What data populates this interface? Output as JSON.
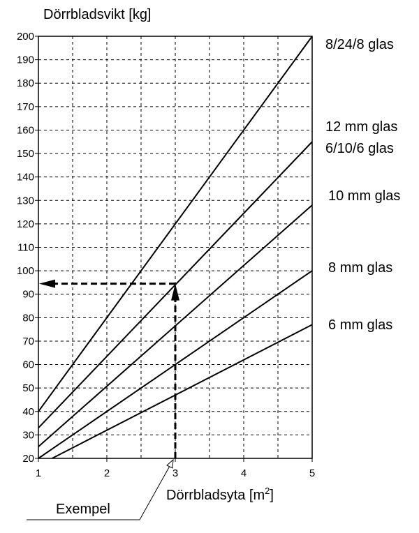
{
  "chart_data": {
    "type": "line",
    "ylabel": "Dörrbladsvikt [kg]",
    "xlabel_base": "Dörrbladsyta [m",
    "xlabel_sup": "2",
    "xlabel_close": "]",
    "xlim": [
      1,
      5
    ],
    "ylim": [
      20,
      200
    ],
    "x_ticks": [
      1,
      2,
      3,
      4,
      5
    ],
    "y_ticks": [
      20,
      30,
      40,
      50,
      60,
      70,
      80,
      90,
      100,
      110,
      120,
      130,
      140,
      150,
      160,
      170,
      180,
      190,
      200
    ],
    "grid": true,
    "series": [
      {
        "name": "8/24/8 glas",
        "x": [
          1,
          5
        ],
        "y": [
          40,
          200
        ]
      },
      {
        "name": "12 mm glas",
        "x": [
          1,
          5
        ],
        "y": [
          33,
          155
        ]
      },
      {
        "name": "6/10/6 glas",
        "x": [
          1,
          5
        ],
        "y": [
          33,
          155
        ]
      },
      {
        "name": "10 mm glas",
        "x": [
          1,
          5
        ],
        "y": [
          25,
          128
        ]
      },
      {
        "name": "8 mm glas",
        "x": [
          1,
          5
        ],
        "y": [
          20,
          100
        ]
      },
      {
        "name": "6 mm glas",
        "x": [
          1.2,
          5
        ],
        "y": [
          20,
          77
        ]
      }
    ],
    "annotation": {
      "label": "Exempel",
      "x": 3,
      "y": 94.5
    }
  }
}
